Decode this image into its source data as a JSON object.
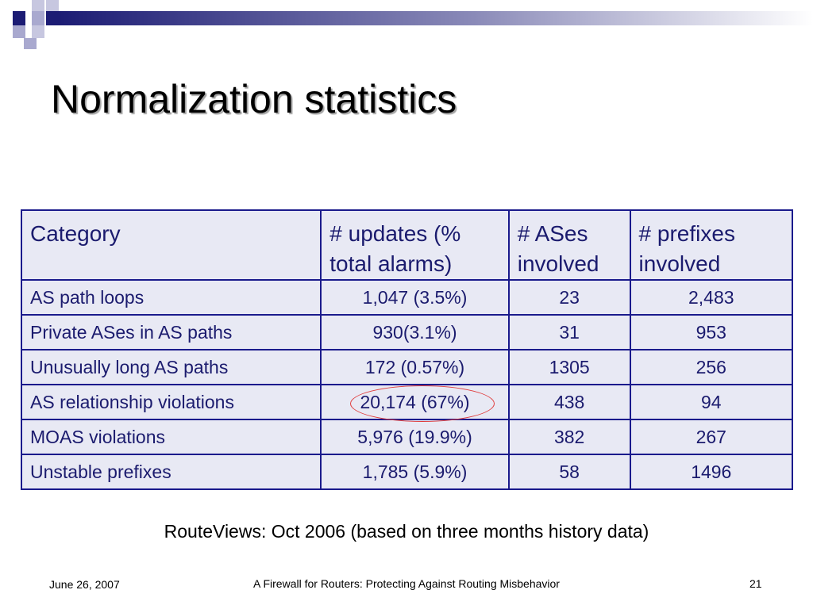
{
  "slide": {
    "title": "Normalization statistics",
    "caption": "RouteViews: Oct 2006 (based on three months history data)"
  },
  "table": {
    "headers": [
      "Category",
      "# updates (% total alarms)",
      "# ASes involved",
      "# prefixes involved"
    ],
    "rows": [
      {
        "category": "AS path loops",
        "updates": "1,047 (3.5%)",
        "ases": "23",
        "prefixes": "2,483"
      },
      {
        "category": "Private ASes in AS paths",
        "updates": "930(3.1%)",
        "ases": "31",
        "prefixes": "953"
      },
      {
        "category": "Unusually long AS paths",
        "updates": "172 (0.57%)",
        "ases": "1305",
        "prefixes": "256"
      },
      {
        "category": "AS relationship violations",
        "updates": "20,174 (67%)",
        "ases": "438",
        "prefixes": "94"
      },
      {
        "category": "MOAS violations",
        "updates": "5,976 (19.9%)",
        "ases": "382",
        "prefixes": "267"
      },
      {
        "category": "Unstable prefixes",
        "updates": "1,785 (5.9%)",
        "ases": "58",
        "prefixes": "1496"
      }
    ]
  },
  "footer": {
    "date": "June 26, 2007",
    "title": "A Firewall for Routers: Protecting Against Routing Misbehavior",
    "page": "21"
  },
  "colors": {
    "table_border": "#1a1a8c",
    "table_fill": "#e8e9f4",
    "table_text": "#1b1b6e",
    "highlight_circle": "#e03c3c",
    "decor_dark": "#1c1c74",
    "decor_light": "#a9a9cf"
  }
}
